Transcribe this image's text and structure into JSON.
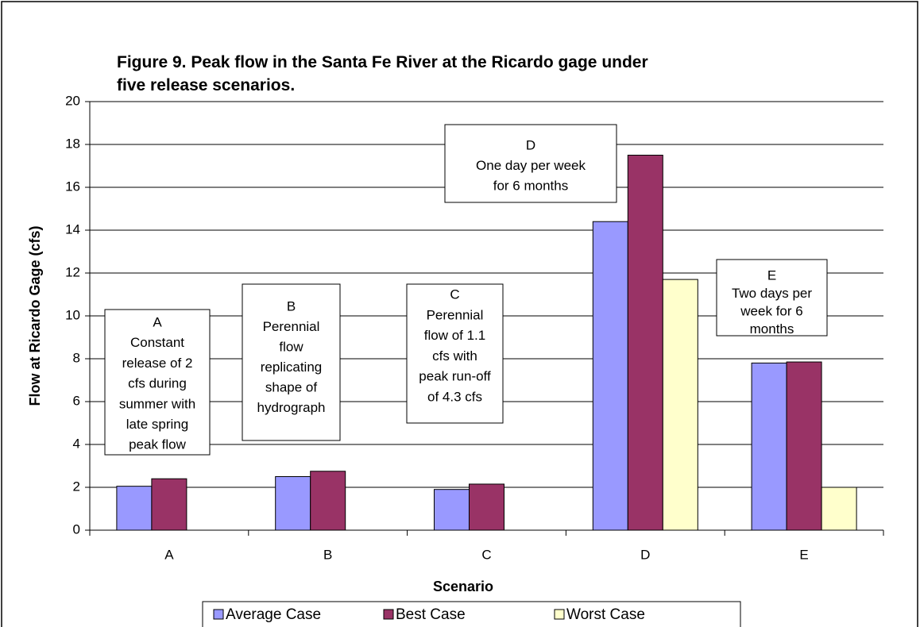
{
  "chart_data": {
    "type": "bar",
    "title": [
      "Figure 9.  Peak flow in the Santa Fe River at the Ricardo gage under",
      "five release scenarios."
    ],
    "xlabel": "Scenario",
    "ylabel": "Flow at Ricardo Gage (cfs)",
    "categories": [
      "A",
      "B",
      "C",
      "D",
      "E"
    ],
    "series": [
      {
        "name": "Average Case",
        "color": "#9999ff",
        "values": [
          2.05,
          2.5,
          1.9,
          14.4,
          7.8
        ]
      },
      {
        "name": "Best Case",
        "color": "#993366",
        "values": [
          2.4,
          2.75,
          2.15,
          17.5,
          7.85
        ]
      },
      {
        "name": "Worst Case",
        "color": "#ffffcc",
        "values": [
          null,
          null,
          null,
          11.7,
          2.0
        ]
      }
    ],
    "ylim": [
      0,
      20
    ],
    "yticks": [
      0,
      2,
      4,
      6,
      8,
      10,
      12,
      14,
      16,
      18,
      20
    ],
    "grid": true,
    "legend": "bottom",
    "annotations": [
      {
        "lines": [
          "A",
          "Constant",
          "release of 2",
          "cfs during",
          "summer with",
          "late spring",
          "peak flow"
        ]
      },
      {
        "lines": [
          "B",
          "Perennial",
          "flow",
          "replicating",
          "shape of",
          "hydrograph"
        ]
      },
      {
        "lines": [
          "C",
          "Perennial",
          "flow of 1.1",
          "cfs with",
          "peak run-off",
          "of 4.3 cfs"
        ]
      },
      {
        "lines": [
          "D",
          "One day per week",
          "for 6 months"
        ]
      },
      {
        "lines": [
          "E",
          "Two days per",
          "week for 6",
          "months"
        ]
      }
    ]
  }
}
